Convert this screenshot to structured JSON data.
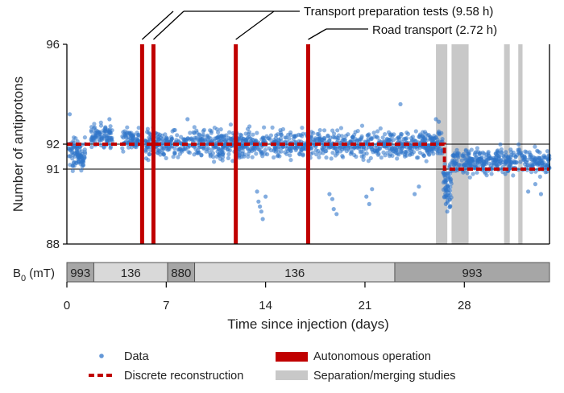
{
  "chart_data": {
    "type": "scatter",
    "xlabel": "Time since injection (days)",
    "ylabel": "Number of antiprotons",
    "xlim": [
      0,
      34
    ],
    "ylim": [
      88,
      96
    ],
    "xticks": [
      0,
      7,
      14,
      21,
      28
    ],
    "yticks": [
      88,
      91,
      92,
      96
    ],
    "reference_lines": [
      91,
      92
    ],
    "colors": {
      "data": "#2f74c9",
      "autonomous": "#c00000",
      "separation": "#c8c8c8",
      "reconstruction": "#c00000"
    },
    "legend": {
      "placement": "bottom",
      "entries": [
        {
          "key": "data",
          "label": "Data"
        },
        {
          "key": "autonomous",
          "label": "Autonomous operation"
        },
        {
          "key": "reconstruction",
          "label": "Discrete reconstruction"
        },
        {
          "key": "separation",
          "label": "Separation/merging studies"
        }
      ]
    },
    "autonomous_operation_days": [
      5.3,
      6.1,
      11.9,
      17.0
    ],
    "separation_bands_days": [
      [
        26.0,
        26.8
      ],
      [
        27.1,
        28.3
      ],
      [
        30.8,
        31.2
      ],
      [
        31.8,
        32.1
      ]
    ],
    "discrete_reconstruction": [
      {
        "x": 0,
        "y": 92
      },
      {
        "x": 26.6,
        "y": 92
      },
      {
        "x": 26.6,
        "y": 91
      },
      {
        "x": 34,
        "y": 91
      }
    ],
    "data_clusters": [
      {
        "x_start": 0.1,
        "x_end": 1.3,
        "y_mean": 91.6,
        "y_spread": 0.6,
        "n": 90
      },
      {
        "x_start": 1.7,
        "x_end": 3.2,
        "y_mean": 92.35,
        "y_spread": 0.45,
        "n": 90
      },
      {
        "x_start": 3.9,
        "x_end": 5.1,
        "y_mean": 92.2,
        "y_spread": 0.45,
        "n": 70
      },
      {
        "x_start": 5.5,
        "x_end": 26.5,
        "y_mean": 92.0,
        "y_spread": 0.55,
        "n": 1100
      },
      {
        "x_start": 26.5,
        "x_end": 27.1,
        "y_mean": 90.5,
        "y_spread": 0.9,
        "n": 60
      },
      {
        "x_start": 27.1,
        "x_end": 34.0,
        "y_mean": 91.3,
        "y_spread": 0.5,
        "n": 380
      }
    ],
    "data_outliers": [
      {
        "x": 13.5,
        "y": 89.7
      },
      {
        "x": 13.6,
        "y": 89.5
      },
      {
        "x": 13.7,
        "y": 89.3
      },
      {
        "x": 13.8,
        "y": 89.0
      },
      {
        "x": 14.0,
        "y": 89.9
      },
      {
        "x": 13.4,
        "y": 90.1
      },
      {
        "x": 18.7,
        "y": 89.8
      },
      {
        "x": 18.8,
        "y": 89.4
      },
      {
        "x": 19.0,
        "y": 89.2
      },
      {
        "x": 18.5,
        "y": 90.0
      },
      {
        "x": 21.1,
        "y": 89.9
      },
      {
        "x": 21.3,
        "y": 89.6
      },
      {
        "x": 21.5,
        "y": 90.2
      },
      {
        "x": 24.5,
        "y": 90.0
      },
      {
        "x": 24.8,
        "y": 90.3
      },
      {
        "x": 26.8,
        "y": 89.3
      },
      {
        "x": 27.0,
        "y": 89.5
      },
      {
        "x": 26.7,
        "y": 89.6
      },
      {
        "x": 32.5,
        "y": 90.1
      },
      {
        "x": 33.0,
        "y": 90.4
      },
      {
        "x": 33.4,
        "y": 90.0
      },
      {
        "x": 26.0,
        "y": 93.0
      },
      {
        "x": 26.2,
        "y": 92.9
      },
      {
        "x": 23.5,
        "y": 93.6
      },
      {
        "x": 8.5,
        "y": 93.0
      },
      {
        "x": 0.2,
        "y": 93.2
      },
      {
        "x": 3.0,
        "y": 93.0
      }
    ],
    "annotations": [
      {
        "text": "Transport preparation tests (9.58 h)",
        "targets_days": [
          5.3,
          6.1,
          11.9
        ]
      },
      {
        "text": "Road transport (2.72 h)",
        "targets_days": [
          17.0
        ]
      }
    ],
    "field_bar": {
      "label_main": "B",
      "label_sub": "0",
      "label_unit": " (mT)",
      "segments": [
        {
          "start": 0,
          "end": 1.9,
          "label": "993",
          "shade": "dark"
        },
        {
          "start": 1.9,
          "end": 7.1,
          "label": "136",
          "shade": "light"
        },
        {
          "start": 7.1,
          "end": 9.0,
          "label": "880",
          "shade": "dark"
        },
        {
          "start": 9.0,
          "end": 23.1,
          "label": "136",
          "shade": "light"
        },
        {
          "start": 23.1,
          "end": 34.0,
          "label": "993",
          "shade": "dark"
        }
      ],
      "shade_colors": {
        "dark": "#a6a6a6",
        "light": "#d9d9d9"
      }
    }
  }
}
